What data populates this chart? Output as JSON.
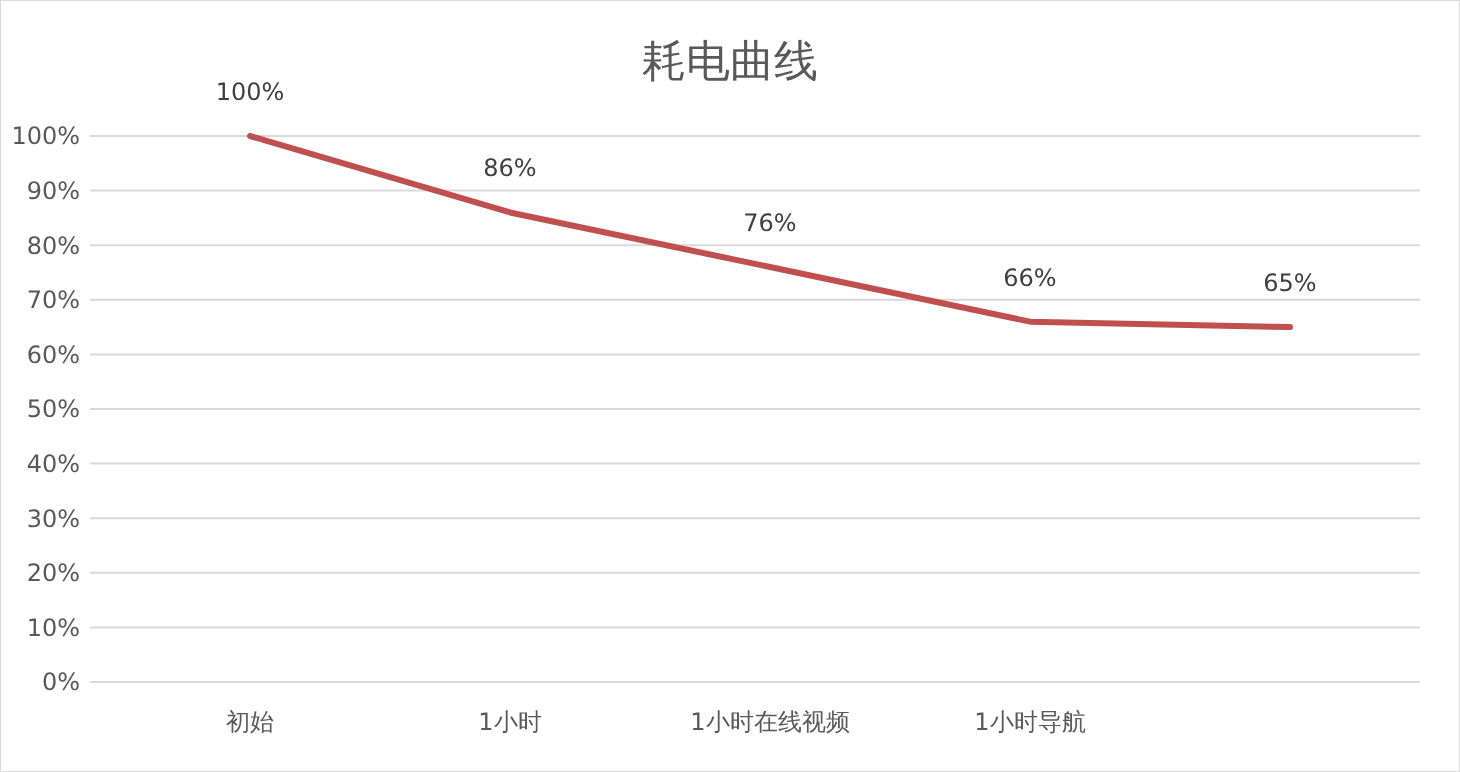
{
  "chart_data": {
    "type": "line",
    "title": "耗电曲线",
    "categories": [
      "初始",
      "1小时",
      "1小时在线视频",
      "1小时导航",
      null
    ],
    "series": [
      {
        "color": "#c0504d",
        "values": [
          100,
          86,
          76,
          66,
          65
        ],
        "value_labels": [
          "100%",
          "86%",
          "76%",
          "66%",
          "65%"
        ]
      }
    ],
    "ylim": [
      0,
      100
    ],
    "yticks": [
      {
        "value": 0,
        "label": "0%"
      },
      {
        "value": 10,
        "label": "10%"
      },
      {
        "value": 20,
        "label": "20%"
      },
      {
        "value": 30,
        "label": "30%"
      },
      {
        "value": 40,
        "label": "40%"
      },
      {
        "value": 50,
        "label": "50%"
      },
      {
        "value": 60,
        "label": "60%"
      },
      {
        "value": 70,
        "label": "70%"
      },
      {
        "value": 80,
        "label": "80%"
      },
      {
        "value": 90,
        "label": "90%"
      },
      {
        "value": 100,
        "label": "100%"
      }
    ],
    "grid": "y",
    "marker": "none",
    "line_style": "solid"
  }
}
